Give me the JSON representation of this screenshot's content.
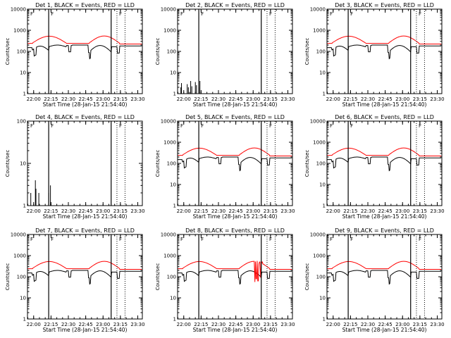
{
  "chart_data": [
    {
      "type": "line",
      "title": "Det 1, BLACK = Events, RED = LLD",
      "xlabel": "Start Time (28-Jan-15 21:54:40)",
      "ylabel": "Counts/sec",
      "xticks": [
        "22:00",
        "22:15",
        "22:30",
        "22:45",
        "23:00",
        "23:15",
        "23:30"
      ],
      "yscale": "log",
      "ylim": [
        1,
        10000
      ],
      "yticks": [
        "1",
        "10",
        "100",
        "1000",
        "10000"
      ],
      "markers_solid": [
        "22:13",
        "23:07"
      ],
      "markers_dotted": [
        "23:12",
        "23:19"
      ],
      "flag": "F",
      "series": [
        {
          "name": "BLACK",
          "color": "#000000",
          "pattern": "events"
        },
        {
          "name": "RED",
          "color": "#ff0000",
          "pattern": "lld"
        }
      ]
    },
    {
      "type": "line",
      "title": "Det 2, BLACK = Events, RED = LLD",
      "xlabel": "Start Time (28-Jan-15 21:54:40)",
      "ylabel": "Counts/sec",
      "xticks": [
        "22:00",
        "22:15",
        "22:30",
        "22:45",
        "23:00",
        "23:15",
        "23:30"
      ],
      "yscale": "log",
      "ylim": [
        1,
        10000
      ],
      "yticks": [
        "1",
        "10",
        "100",
        "1000",
        "10000"
      ],
      "markers_solid": [
        "22:13",
        "23:07"
      ],
      "markers_dotted": [
        "23:12",
        "23:19"
      ],
      "flag": "F",
      "series": [
        {
          "name": "BLACK",
          "color": "#000000",
          "pattern": "spikes"
        }
      ]
    },
    {
      "type": "line",
      "title": "Det 3, BLACK = Events, RED = LLD",
      "xlabel": "Start Time (28-Jan-15 21:54:40)",
      "ylabel": "Counts/sec",
      "xticks": [
        "22:00",
        "22:15",
        "22:30",
        "22:45",
        "23:00",
        "23:15",
        "23:30"
      ],
      "yscale": "log",
      "ylim": [
        1,
        10000
      ],
      "yticks": [
        "1",
        "10",
        "100",
        "1000",
        "10000"
      ],
      "markers_solid": [
        "22:13",
        "23:07"
      ],
      "markers_dotted": [
        "23:12",
        "23:19"
      ],
      "flag": "F",
      "series": [
        {
          "name": "BLACK",
          "color": "#000000",
          "pattern": "events"
        },
        {
          "name": "RED",
          "color": "#ff0000",
          "pattern": "lld"
        }
      ]
    },
    {
      "type": "line",
      "title": "Det 4, BLACK = Events, RED = LLD",
      "xlabel": "Start Time (28-Jan-15 21:54:40)",
      "ylabel": "Counts/sec",
      "xticks": [
        "22:00",
        "22:15",
        "22:30",
        "22:45",
        "23:00",
        "23:15",
        "23:30"
      ],
      "yscale": "log",
      "ylim": [
        1,
        100
      ],
      "yticks": [
        "1",
        "10",
        "100"
      ],
      "markers_solid": [
        "22:13",
        "23:07"
      ],
      "markers_dotted": [
        "23:12",
        "23:19"
      ],
      "flag": "F",
      "series": [
        {
          "name": "BLACK",
          "color": "#000000",
          "pattern": "spikes"
        }
      ]
    },
    {
      "type": "line",
      "title": "Det 5, BLACK = Events, RED = LLD",
      "xlabel": "Start Time (28-Jan-15 21:54:40)",
      "ylabel": "Counts/sec",
      "xticks": [
        "22:00",
        "22:15",
        "22:30",
        "22:45",
        "23:00",
        "23:15",
        "23:30"
      ],
      "yscale": "log",
      "ylim": [
        1,
        10000
      ],
      "yticks": [
        "1",
        "10",
        "100",
        "1000",
        "10000"
      ],
      "markers_solid": [
        "22:13",
        "23:07"
      ],
      "markers_dotted": [
        "23:12",
        "23:19"
      ],
      "flag": "F",
      "series": [
        {
          "name": "BLACK",
          "color": "#000000",
          "pattern": "events"
        },
        {
          "name": "RED",
          "color": "#ff0000",
          "pattern": "lld"
        }
      ]
    },
    {
      "type": "line",
      "title": "Det 6, BLACK = Events, RED = LLD",
      "xlabel": "Start Time (28-Jan-15 21:54:40)",
      "ylabel": "Counts/sec",
      "xticks": [
        "22:00",
        "22:15",
        "22:30",
        "22:45",
        "23:00",
        "23:15",
        "23:30"
      ],
      "yscale": "log",
      "ylim": [
        1,
        10000
      ],
      "yticks": [
        "1",
        "10",
        "100",
        "1000",
        "10000"
      ],
      "markers_solid": [
        "22:13",
        "23:07"
      ],
      "markers_dotted": [
        "23:12",
        "23:19"
      ],
      "flag": "F",
      "series": [
        {
          "name": "BLACK",
          "color": "#000000",
          "pattern": "events"
        },
        {
          "name": "RED",
          "color": "#ff0000",
          "pattern": "lld"
        }
      ]
    },
    {
      "type": "line",
      "title": "Det 7, BLACK = Events, RED = LLD",
      "xlabel": "Start Time (28-Jan-15 21:54:40)",
      "ylabel": "Counts/sec",
      "xticks": [
        "22:00",
        "22:15",
        "22:30",
        "22:45",
        "23:00",
        "23:15",
        "23:30"
      ],
      "yscale": "log",
      "ylim": [
        1,
        10000
      ],
      "yticks": [
        "1",
        "10",
        "100",
        "1000",
        "10000"
      ],
      "markers_solid": [
        "22:13",
        "23:07"
      ],
      "markers_dotted": [
        "23:12",
        "23:19"
      ],
      "flag": "F",
      "series": [
        {
          "name": "BLACK",
          "color": "#000000",
          "pattern": "events"
        },
        {
          "name": "RED",
          "color": "#ff0000",
          "pattern": "lld"
        }
      ]
    },
    {
      "type": "line",
      "title": "Det 8, BLACK = Events, RED = LLD",
      "xlabel": "Start Time (28-Jan-15 21:54:40)",
      "ylabel": "Counts/sec",
      "xticks": [
        "22:00",
        "22:15",
        "22:30",
        "22:45",
        "23:00",
        "23:15",
        "23:30"
      ],
      "yscale": "log",
      "ylim": [
        1,
        10000
      ],
      "yticks": [
        "1",
        "10",
        "100",
        "1000",
        "10000"
      ],
      "markers_solid": [
        "22:13",
        "23:07"
      ],
      "markers_dotted": [
        "23:12",
        "23:19"
      ],
      "flag": "F",
      "series": [
        {
          "name": "BLACK",
          "color": "#000000",
          "pattern": "events"
        },
        {
          "name": "RED",
          "color": "#ff0000",
          "pattern": "lld8"
        }
      ]
    },
    {
      "type": "line",
      "title": "Det 9, BLACK = Events, RED = LLD",
      "xlabel": "Start Time (28-Jan-15 21:54:40)",
      "ylabel": "Counts/sec",
      "xticks": [
        "22:00",
        "22:15",
        "22:30",
        "22:45",
        "23:00",
        "23:15",
        "23:30"
      ],
      "yscale": "log",
      "ylim": [
        1,
        10000
      ],
      "yticks": [
        "1",
        "10",
        "100",
        "1000",
        "10000"
      ],
      "markers_solid": [
        "22:13",
        "23:07"
      ],
      "markers_dotted": [
        "23:12",
        "23:19"
      ],
      "flag": "F",
      "series": [
        {
          "name": "BLACK",
          "color": "#000000",
          "pattern": "events"
        },
        {
          "name": "RED",
          "color": "#ff0000",
          "pattern": "lld"
        }
      ]
    }
  ]
}
